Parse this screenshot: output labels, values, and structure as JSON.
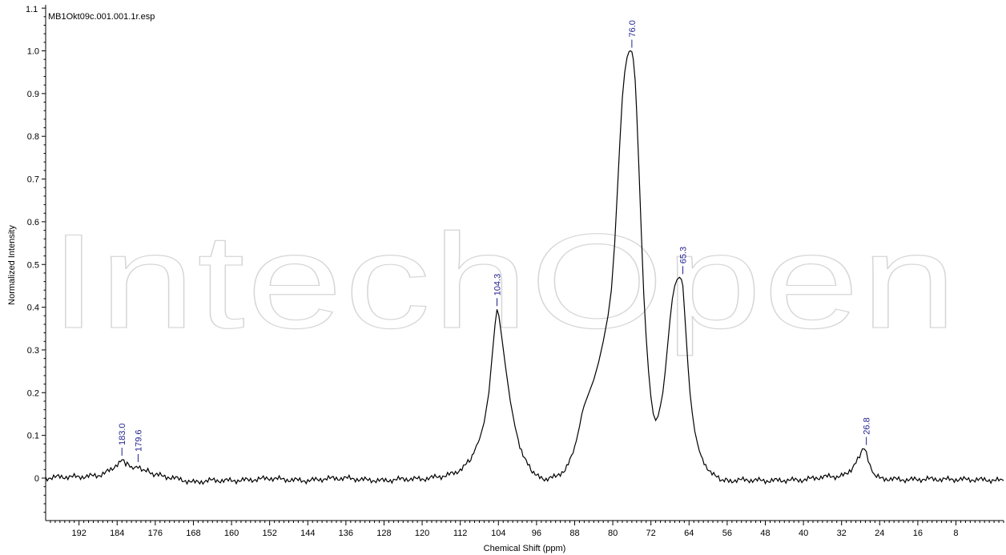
{
  "colors": {
    "axis": "#000000",
    "spectrum": "#000000",
    "peak_label": "#1f1f8f",
    "watermark": "#d6d6d6"
  },
  "watermark": "IntechOpen",
  "chart_data": {
    "type": "line",
    "file_label": "MB1Okt09c.001.001.1r.esp",
    "xlabel": "Chemical Shift (ppm)",
    "ylabel": "Normalized Intensity",
    "xlim": [
      199,
      -2
    ],
    "ylim": [
      -0.1,
      1.1
    ],
    "x_reversed": true,
    "x_ticks": [
      192,
      184,
      176,
      168,
      160,
      152,
      144,
      136,
      128,
      120,
      112,
      104,
      96,
      88,
      80,
      72,
      64,
      56,
      48,
      40,
      32,
      24,
      16,
      8
    ],
    "y_ticks": [
      0,
      0.1,
      0.2,
      0.3,
      0.4,
      0.5,
      0.6,
      0.7,
      0.8,
      0.9,
      1.0
    ],
    "y_tick_labels": [
      "0",
      "0.1",
      "0.2",
      "0.3",
      "0.4",
      "0.5",
      "0.6",
      "0.7",
      "0.8",
      "0.9",
      "1.0"
    ],
    "top_tick_label": "1.1",
    "peaks": [
      {
        "label": "183.0",
        "x": 183.0,
        "y": 0.045
      },
      {
        "label": "179.6",
        "x": 179.6,
        "y": 0.03
      },
      {
        "label": "104.3",
        "x": 104.3,
        "y": 0.395
      },
      {
        "label": "76.0",
        "x": 76.0,
        "y": 1.0
      },
      {
        "label": "65.3",
        "x": 65.3,
        "y": 0.47
      },
      {
        "label": "26.8",
        "x": 26.8,
        "y": 0.07
      }
    ],
    "series": [
      {
        "x": [
          199,
          196,
          192,
          188,
          185,
          183.6,
          183.0,
          182.2,
          181,
          179.6,
          178.5,
          176,
          172,
          168,
          164,
          160,
          156,
          152,
          148,
          144,
          140,
          136,
          132,
          128,
          124,
          120,
          116,
          113,
          111,
          109.5,
          108,
          107,
          106,
          105.2,
          104.7,
          104.3,
          103.9,
          103.3,
          102.5,
          101.5,
          100.5,
          99.5,
          98.5,
          97.5,
          96,
          94,
          92,
          90,
          89,
          88,
          87,
          86.5,
          86,
          85,
          84,
          83,
          82,
          81,
          80.3,
          79.6,
          79,
          78.5,
          78,
          77.5,
          77,
          76.6,
          76.3,
          76.0,
          75.7,
          75.3,
          75,
          74.5,
          74,
          73.5,
          73,
          72.5,
          72,
          71.5,
          71,
          70.5,
          70,
          69.5,
          69,
          68.5,
          68,
          67.5,
          67,
          66.5,
          66,
          65.6,
          65.3,
          65.0,
          64.6,
          64.2,
          63.8,
          63.3,
          62.8,
          62.2,
          61.5,
          60.5,
          59.5,
          58.5,
          57.5,
          56,
          52,
          48,
          44,
          40,
          36,
          33,
          31,
          30,
          29,
          28.2,
          27.6,
          27.2,
          26.8,
          26.4,
          26,
          25.5,
          25,
          24,
          22,
          18,
          14,
          10,
          6,
          2,
          -2
        ],
        "y": [
          0.0,
          0.003,
          0.003,
          0.006,
          0.02,
          0.038,
          0.045,
          0.035,
          0.025,
          0.03,
          0.02,
          0.008,
          0.0,
          -0.01,
          -0.005,
          -0.006,
          -0.004,
          0.0,
          -0.004,
          -0.006,
          -0.001,
          0.0,
          -0.004,
          -0.006,
          -0.002,
          -0.002,
          0.004,
          0.012,
          0.03,
          0.05,
          0.09,
          0.13,
          0.2,
          0.3,
          0.36,
          0.395,
          0.38,
          0.33,
          0.26,
          0.18,
          0.12,
          0.075,
          0.045,
          0.025,
          0.005,
          -0.002,
          0.003,
          0.02,
          0.04,
          0.07,
          0.12,
          0.15,
          0.17,
          0.2,
          0.23,
          0.27,
          0.32,
          0.38,
          0.44,
          0.55,
          0.68,
          0.79,
          0.89,
          0.95,
          0.985,
          0.998,
          1.0,
          0.998,
          0.98,
          0.93,
          0.86,
          0.72,
          0.57,
          0.43,
          0.33,
          0.25,
          0.19,
          0.15,
          0.135,
          0.145,
          0.17,
          0.2,
          0.25,
          0.31,
          0.37,
          0.42,
          0.45,
          0.465,
          0.47,
          0.465,
          0.45,
          0.4,
          0.33,
          0.26,
          0.2,
          0.15,
          0.11,
          0.08,
          0.05,
          0.03,
          0.015,
          0.004,
          -0.003,
          -0.006,
          -0.004,
          -0.006,
          -0.005,
          -0.004,
          0.003,
          0.004,
          0.008,
          0.02,
          0.04,
          0.055,
          0.065,
          0.07,
          0.06,
          0.045,
          0.03,
          0.015,
          0.005,
          0.0,
          -0.002,
          -0.004,
          -0.002,
          -0.003,
          -0.003,
          -0.004,
          -0.006
        ]
      }
    ]
  }
}
